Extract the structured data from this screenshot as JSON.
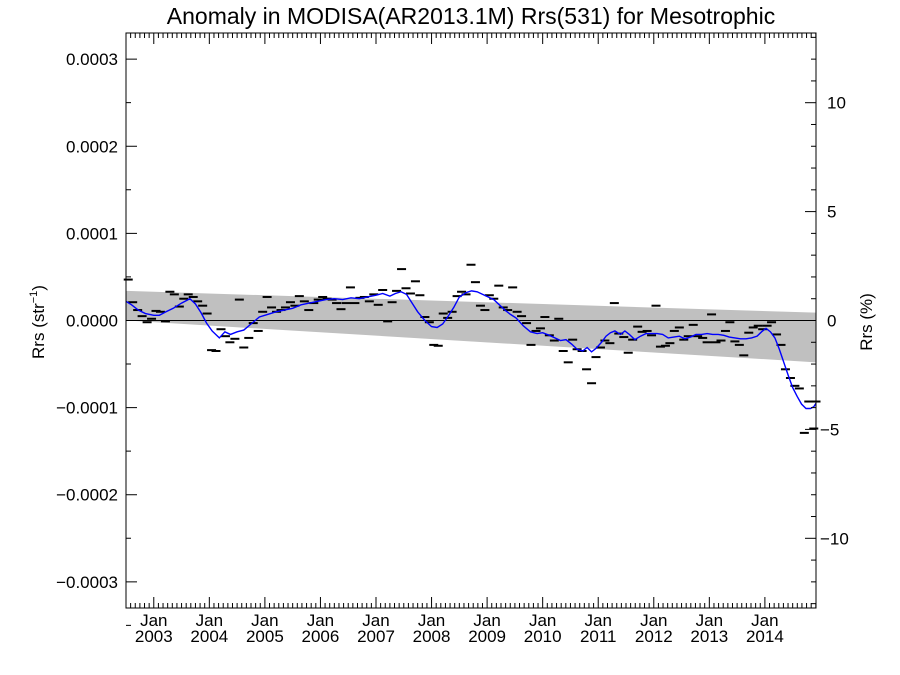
{
  "chart_data": {
    "type": "line",
    "title": "Anomaly in MODISA(AR2013.1M) Rrs(531) for Mesotrophic",
    "ylabel_left": {
      "base": "Rrs (str",
      "sup": "−1",
      "tail": ")"
    },
    "ylabel_right": "Rrs (%)",
    "xlim": [
      2002.5,
      2014.92
    ],
    "ylim_left": [
      -0.00033,
      0.00033
    ],
    "ylim_right": [
      -13.2,
      13.2
    ],
    "x_ticks": [
      {
        "x": 2003.0,
        "top": "Jan",
        "bottom": "2003"
      },
      {
        "x": 2004.0,
        "top": "Jan",
        "bottom": "2004"
      },
      {
        "x": 2005.0,
        "top": "Jan",
        "bottom": "2005"
      },
      {
        "x": 2006.0,
        "top": "Jan",
        "bottom": "2006"
      },
      {
        "x": 2007.0,
        "top": "Jan",
        "bottom": "2007"
      },
      {
        "x": 2008.0,
        "top": "Jan",
        "bottom": "2008"
      },
      {
        "x": 2009.0,
        "top": "Jan",
        "bottom": "2009"
      },
      {
        "x": 2010.0,
        "top": "Jan",
        "bottom": "2010"
      },
      {
        "x": 2011.0,
        "top": "Jan",
        "bottom": "2011"
      },
      {
        "x": 2012.0,
        "top": "Jan",
        "bottom": "2012"
      },
      {
        "x": 2013.0,
        "top": "Jan",
        "bottom": "2013"
      },
      {
        "x": 2014.0,
        "top": "Jan",
        "bottom": "2014"
      }
    ],
    "y_ticks_left": [
      {
        "v": 0.0003,
        "label": "0.0003"
      },
      {
        "v": 0.0002,
        "label": "0.0002"
      },
      {
        "v": 0.0001,
        "label": "0.0001"
      },
      {
        "v": 0.0,
        "label": "0.0000"
      },
      {
        "v": -0.0001,
        "label": "−0.0001"
      },
      {
        "v": -0.0002,
        "label": "−0.0002"
      },
      {
        "v": -0.0003,
        "label": "−0.0003"
      }
    ],
    "y_ticks_right": [
      {
        "v": 10,
        "label": "10"
      },
      {
        "v": 5,
        "label": "5"
      },
      {
        "v": 0,
        "label": "0"
      },
      {
        "v": -5,
        "label": "−5"
      },
      {
        "v": -10,
        "label": "−10"
      }
    ],
    "trend_band": {
      "color": "#c0c0c0",
      "x": [
        2002.5,
        2014.92
      ],
      "upper": [
        3.4e-05,
        9e-06
      ],
      "lower": [
        0.0,
        -4.8e-05
      ]
    },
    "zero_line": 0.0,
    "monthly_anomalies": {
      "color": "#000000",
      "points": [
        [
          2002.54,
          4.7e-05
        ],
        [
          2002.62,
          2.1e-05
        ],
        [
          2002.71,
          1.2e-05
        ],
        [
          2002.79,
          5e-06
        ],
        [
          2002.88,
          -2e-06
        ],
        [
          2002.96,
          2e-06
        ],
        [
          2003.04,
          1.1e-05
        ],
        [
          2003.12,
          1e-05
        ],
        [
          2003.21,
          -1e-06
        ],
        [
          2003.29,
          3.3e-05
        ],
        [
          2003.37,
          3e-05
        ],
        [
          2003.46,
          1.6e-05
        ],
        [
          2003.54,
          2.5e-05
        ],
        [
          2003.62,
          3e-05
        ],
        [
          2003.71,
          2.7e-05
        ],
        [
          2003.79,
          2.2e-05
        ],
        [
          2003.88,
          1.7e-05
        ],
        [
          2003.96,
          8e-06
        ],
        [
          2004.04,
          -3.4e-05
        ],
        [
          2004.12,
          -3.5e-05
        ],
        [
          2004.21,
          -1e-05
        ],
        [
          2004.29,
          -1.8e-05
        ],
        [
          2004.37,
          -2.5e-05
        ],
        [
          2004.46,
          -2.1e-05
        ],
        [
          2004.54,
          2.4e-05
        ],
        [
          2004.62,
          -3.1e-05
        ],
        [
          2004.71,
          -2e-05
        ],
        [
          2004.79,
          -3e-06
        ],
        [
          2004.88,
          -1.2e-05
        ],
        [
          2004.96,
          1e-05
        ],
        [
          2005.04,
          2.7e-05
        ],
        [
          2005.12,
          1.5e-05
        ],
        [
          2005.21,
          1e-05
        ],
        [
          2005.29,
          1.2e-05
        ],
        [
          2005.37,
          1.5e-05
        ],
        [
          2005.46,
          2.1e-05
        ],
        [
          2005.54,
          1.7e-05
        ],
        [
          2005.62,
          2.8e-05
        ],
        [
          2005.71,
          2.2e-05
        ],
        [
          2005.79,
          1.2e-05
        ],
        [
          2005.88,
          2e-05
        ],
        [
          2005.96,
          2.4e-05
        ],
        [
          2006.04,
          2.7e-05
        ],
        [
          2006.12,
          2.5e-05
        ],
        [
          2006.21,
          2.4e-05
        ],
        [
          2006.29,
          2e-05
        ],
        [
          2006.37,
          1.3e-05
        ],
        [
          2006.46,
          2e-05
        ],
        [
          2006.54,
          3.8e-05
        ],
        [
          2006.62,
          2e-05
        ],
        [
          2006.71,
          2.6e-05
        ],
        [
          2006.79,
          2.7e-05
        ],
        [
          2006.88,
          2.2e-05
        ],
        [
          2006.96,
          3e-05
        ],
        [
          2007.04,
          1.8e-05
        ],
        [
          2007.12,
          3.5e-05
        ],
        [
          2007.21,
          -1e-06
        ],
        [
          2007.29,
          2.1e-05
        ],
        [
          2007.37,
          3.4e-05
        ],
        [
          2007.46,
          5.9e-05
        ],
        [
          2007.54,
          3.7e-05
        ],
        [
          2007.62,
          3.1e-05
        ],
        [
          2007.71,
          4.5e-05
        ],
        [
          2007.79,
          2.9e-05
        ],
        [
          2007.88,
          4e-06
        ],
        [
          2007.96,
          -2e-06
        ],
        [
          2008.04,
          -2.8e-05
        ],
        [
          2008.12,
          -2.9e-05
        ],
        [
          2008.21,
          8e-06
        ],
        [
          2008.29,
          3e-06
        ],
        [
          2008.37,
          1e-05
        ],
        [
          2008.46,
          2.8e-05
        ],
        [
          2008.54,
          3.3e-05
        ],
        [
          2008.62,
          3e-05
        ],
        [
          2008.71,
          6.4e-05
        ],
        [
          2008.79,
          4.4e-05
        ],
        [
          2008.88,
          1.7e-05
        ],
        [
          2008.96,
          1.2e-05
        ],
        [
          2009.04,
          2.9e-05
        ],
        [
          2009.12,
          2.5e-05
        ],
        [
          2009.21,
          4e-05
        ],
        [
          2009.29,
          1.5e-05
        ],
        [
          2009.37,
          1.2e-05
        ],
        [
          2009.46,
          3.8e-05
        ],
        [
          2009.54,
          1e-05
        ],
        [
          2009.62,
          5e-06
        ],
        [
          2009.71,
          -3e-06
        ],
        [
          2009.79,
          -2.8e-05
        ],
        [
          2009.88,
          -1.2e-05
        ],
        [
          2009.96,
          -9e-06
        ],
        [
          2010.04,
          4e-06
        ],
        [
          2010.12,
          -1.7e-05
        ],
        [
          2010.21,
          -2.3e-05
        ],
        [
          2010.29,
          2e-06
        ],
        [
          2010.37,
          -3.5e-05
        ],
        [
          2010.46,
          -4.8e-05
        ],
        [
          2010.54,
          -2.2e-05
        ],
        [
          2010.62,
          -3.3e-05
        ],
        [
          2010.71,
          -3.5e-05
        ],
        [
          2010.79,
          -5.6e-05
        ],
        [
          2010.88,
          -7.2e-05
        ],
        [
          2010.96,
          -4.2e-05
        ],
        [
          2011.04,
          -3.1e-05
        ],
        [
          2011.12,
          -2.3e-05
        ],
        [
          2011.21,
          -2.6e-05
        ],
        [
          2011.29,
          2e-05
        ],
        [
          2011.37,
          -1.5e-05
        ],
        [
          2011.46,
          -1.9e-05
        ],
        [
          2011.54,
          -3.7e-05
        ],
        [
          2011.62,
          -2.2e-05
        ],
        [
          2011.71,
          -7e-06
        ],
        [
          2011.79,
          -1.3e-05
        ],
        [
          2011.88,
          -1.2e-05
        ],
        [
          2011.96,
          -1.7e-05
        ],
        [
          2012.04,
          1.7e-05
        ],
        [
          2012.12,
          -3e-05
        ],
        [
          2012.21,
          -2.9e-05
        ],
        [
          2012.29,
          -2.6e-05
        ],
        [
          2012.37,
          -1.2e-05
        ],
        [
          2012.46,
          -8e-06
        ],
        [
          2012.54,
          -2.2e-05
        ],
        [
          2012.62,
          -1.8e-05
        ],
        [
          2012.71,
          -5e-06
        ],
        [
          2012.79,
          -1.8e-05
        ],
        [
          2012.88,
          -2e-05
        ],
        [
          2012.96,
          -2.5e-05
        ],
        [
          2013.04,
          7e-06
        ],
        [
          2013.12,
          -2.5e-05
        ],
        [
          2013.21,
          -2.3e-05
        ],
        [
          2013.29,
          -1.2e-05
        ],
        [
          2013.37,
          -2e-06
        ],
        [
          2013.46,
          -2.4e-05
        ],
        [
          2013.54,
          -2.8e-05
        ],
        [
          2013.62,
          -4e-05
        ],
        [
          2013.71,
          -1.4e-05
        ],
        [
          2013.79,
          -8e-06
        ],
        [
          2013.88,
          -6e-06
        ],
        [
          2013.96,
          -1e-05
        ],
        [
          2014.04,
          -6e-06
        ],
        [
          2014.12,
          -2e-06
        ],
        [
          2014.21,
          -1.6e-05
        ],
        [
          2014.29,
          -2.8e-05
        ],
        [
          2014.37,
          -5.6e-05
        ],
        [
          2014.46,
          -6.6e-05
        ],
        [
          2014.54,
          -7.5e-05
        ],
        [
          2014.62,
          -7.8e-05
        ],
        [
          2014.71,
          -0.000129
        ],
        [
          2014.79,
          -9.3e-05
        ],
        [
          2014.88,
          -0.000124
        ],
        [
          2014.92,
          -9.3e-05
        ]
      ]
    },
    "running_mean": {
      "color": "#0000ff",
      "points": [
        [
          2002.5,
          2.2e-05
        ],
        [
          2002.6,
          1.8e-05
        ],
        [
          2002.72,
          1.2e-05
        ],
        [
          2002.85,
          8e-06
        ],
        [
          2003.0,
          6e-06
        ],
        [
          2003.1,
          6e-06
        ],
        [
          2003.22,
          1e-05
        ],
        [
          2003.35,
          1.4e-05
        ],
        [
          2003.5,
          2e-05
        ],
        [
          2003.65,
          2.5e-05
        ],
        [
          2003.75,
          1.9e-05
        ],
        [
          2003.85,
          9e-06
        ],
        [
          2003.95,
          -3e-06
        ],
        [
          2004.05,
          -1.2e-05
        ],
        [
          2004.18,
          -2e-05
        ],
        [
          2004.28,
          -1.3e-05
        ],
        [
          2004.38,
          -1.6e-05
        ],
        [
          2004.5,
          -1.3e-05
        ],
        [
          2004.62,
          -1.1e-05
        ],
        [
          2004.75,
          -4e-06
        ],
        [
          2004.9,
          4e-06
        ],
        [
          2005.05,
          7e-06
        ],
        [
          2005.2,
          1e-05
        ],
        [
          2005.35,
          1.2e-05
        ],
        [
          2005.5,
          1.4e-05
        ],
        [
          2005.65,
          1.8e-05
        ],
        [
          2005.8,
          2e-05
        ],
        [
          2005.95,
          2.2e-05
        ],
        [
          2006.1,
          2.4e-05
        ],
        [
          2006.25,
          2.5e-05
        ],
        [
          2006.4,
          2.4e-05
        ],
        [
          2006.55,
          2.6e-05
        ],
        [
          2006.7,
          2.5e-05
        ],
        [
          2006.85,
          2.7e-05
        ],
        [
          2007.0,
          2.9e-05
        ],
        [
          2007.12,
          3.1e-05
        ],
        [
          2007.25,
          2.8e-05
        ],
        [
          2007.35,
          3.1e-05
        ],
        [
          2007.45,
          3.3e-05
        ],
        [
          2007.55,
          3e-05
        ],
        [
          2007.65,
          2e-05
        ],
        [
          2007.75,
          1e-05
        ],
        [
          2007.88,
          0.0
        ],
        [
          2008.0,
          -7e-06
        ],
        [
          2008.1,
          -8e-06
        ],
        [
          2008.2,
          -4e-06
        ],
        [
          2008.3,
          5e-06
        ],
        [
          2008.4,
          1.5e-05
        ],
        [
          2008.5,
          2.7e-05
        ],
        [
          2008.62,
          3.2e-05
        ],
        [
          2008.72,
          3.4e-05
        ],
        [
          2008.82,
          3.3e-05
        ],
        [
          2008.92,
          3e-05
        ],
        [
          2009.02,
          2.7e-05
        ],
        [
          2009.12,
          2.4e-05
        ],
        [
          2009.22,
          1.8e-05
        ],
        [
          2009.32,
          1.2e-05
        ],
        [
          2009.42,
          7e-06
        ],
        [
          2009.52,
          3e-06
        ],
        [
          2009.65,
          -6e-06
        ],
        [
          2009.78,
          -1.3e-05
        ],
        [
          2009.9,
          -1.5e-05
        ],
        [
          2010.0,
          -1.4e-05
        ],
        [
          2010.12,
          -1.7e-05
        ],
        [
          2010.22,
          -2e-05
        ],
        [
          2010.32,
          -2.3e-05
        ],
        [
          2010.42,
          -2.2e-05
        ],
        [
          2010.52,
          -2.7e-05
        ],
        [
          2010.62,
          -3.3e-05
        ],
        [
          2010.72,
          -3.5e-05
        ],
        [
          2010.8,
          -3.1e-05
        ],
        [
          2010.88,
          -3.6e-05
        ],
        [
          2010.96,
          -3.2e-05
        ],
        [
          2011.06,
          -2.5e-05
        ],
        [
          2011.14,
          -1.8e-05
        ],
        [
          2011.22,
          -1.4e-05
        ],
        [
          2011.3,
          -1.2e-05
        ],
        [
          2011.4,
          -1.6e-05
        ],
        [
          2011.48,
          -1.2e-05
        ],
        [
          2011.56,
          -1.6e-05
        ],
        [
          2011.66,
          -2.2e-05
        ],
        [
          2011.76,
          -1.8e-05
        ],
        [
          2011.86,
          -1.5e-05
        ],
        [
          2011.96,
          -1.5e-05
        ],
        [
          2012.06,
          -1.5e-05
        ],
        [
          2012.16,
          -1.6e-05
        ],
        [
          2012.26,
          -2e-05
        ],
        [
          2012.36,
          -1.9e-05
        ],
        [
          2012.46,
          -1.8e-05
        ],
        [
          2012.56,
          -2.1e-05
        ],
        [
          2012.66,
          -1.9e-05
        ],
        [
          2012.76,
          -1.6e-05
        ],
        [
          2012.86,
          -1.6e-05
        ],
        [
          2012.96,
          -1.5e-05
        ],
        [
          2013.06,
          -1.6e-05
        ],
        [
          2013.16,
          -1.6e-05
        ],
        [
          2013.26,
          -1.7e-05
        ],
        [
          2013.36,
          -1.9e-05
        ],
        [
          2013.46,
          -2e-05
        ],
        [
          2013.56,
          -2.1e-05
        ],
        [
          2013.66,
          -2.1e-05
        ],
        [
          2013.76,
          -2e-05
        ],
        [
          2013.86,
          -1.8e-05
        ],
        [
          2013.94,
          -1.3e-05
        ],
        [
          2014.02,
          -9e-06
        ],
        [
          2014.1,
          -1.3e-05
        ],
        [
          2014.18,
          -2e-05
        ],
        [
          2014.26,
          -3.3e-05
        ],
        [
          2014.34,
          -4.8e-05
        ],
        [
          2014.42,
          -6.3e-05
        ],
        [
          2014.5,
          -7.7e-05
        ],
        [
          2014.58,
          -8.7e-05
        ],
        [
          2014.66,
          -9.6e-05
        ],
        [
          2014.74,
          -0.000101
        ],
        [
          2014.82,
          -0.000101
        ],
        [
          2014.88,
          -9.9e-05
        ],
        [
          2014.92,
          -9.5e-05
        ]
      ]
    }
  }
}
